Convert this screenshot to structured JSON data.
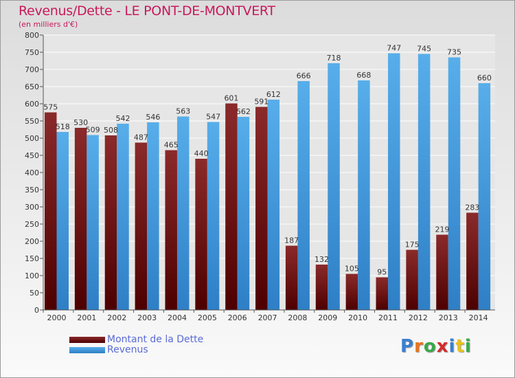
{
  "title": "Revenus/Dette - LE PONT-DE-MONTVERT",
  "subtitle": "(en milliers d'€)",
  "legend": {
    "debt": "Montant de la Dette",
    "revenue": "Revenus"
  },
  "logo": {
    "letters": [
      "P",
      "r",
      "o",
      "x",
      "i",
      "t",
      "i"
    ],
    "colors": [
      "#3a7fd0",
      "#e8731e",
      "#3aa84a",
      "#d62a2a",
      "#3a7fd0",
      "#e8c21e",
      "#3aa84a"
    ]
  },
  "colors": {
    "debt": "#7a1a1a",
    "revenue": "#3f9be0",
    "grid": "#ffffff"
  },
  "chart_data": {
    "type": "bar",
    "categories": [
      "2000",
      "2001",
      "2002",
      "2003",
      "2004",
      "2005",
      "2006",
      "2007",
      "2008",
      "2009",
      "2010",
      "2011",
      "2012",
      "2013",
      "2014"
    ],
    "series": [
      {
        "name": "Montant de la Dette",
        "values": [
          575,
          530,
          508,
          487,
          465,
          440,
          601,
          591,
          187,
          132,
          105,
          95,
          175,
          219,
          283
        ],
        "labels": [
          "575",
          "530",
          "508",
          "487",
          "465",
          "440",
          "601",
          "591",
          "187",
          "132",
          "105",
          "95",
          "175",
          "219",
          "283"
        ]
      },
      {
        "name": "Revenus",
        "values": [
          518,
          509,
          542,
          546,
          563,
          547,
          562,
          612,
          666,
          718,
          668,
          747,
          745,
          735,
          660
        ],
        "labels": [
          "518",
          "509",
          "542",
          "546",
          "563",
          "547",
          "562",
          "612",
          "666",
          "718",
          "668",
          "747",
          "745",
          "735",
          "660"
        ]
      }
    ],
    "ylim": [
      0,
      800
    ],
    "yticks": [
      0,
      50,
      100,
      150,
      200,
      250,
      300,
      350,
      400,
      450,
      500,
      550,
      600,
      650,
      700,
      750,
      800
    ],
    "grid": true,
    "legend_position": "bottom-left"
  }
}
